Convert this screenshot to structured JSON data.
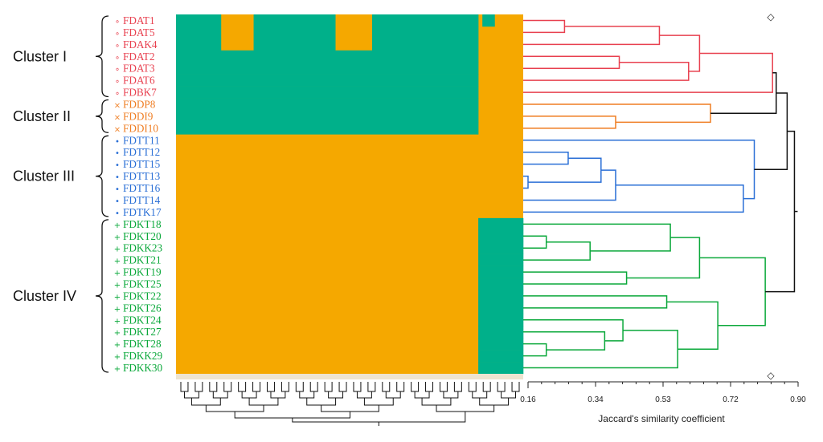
{
  "chart_data": {
    "type": "heatmap",
    "title": "",
    "xlabel": "Jaccard's similarity coefficient",
    "ylabel": "",
    "xlim": [
      0.16,
      0.9
    ],
    "xticks": [
      "0.16",
      "0.34",
      "0.53",
      "0.72",
      "0.90"
    ],
    "grid": false,
    "legend": "none",
    "heatmap_colors": {
      "present": "#00b08a",
      "absent": "#f5a800"
    },
    "marker_symbol": "◇",
    "clusters": [
      {
        "name": "Cluster I",
        "color": "#e8404f",
        "marker": "∘",
        "members": [
          "FDAT1",
          "FDAT5",
          "FDAK4",
          "FDAT2",
          "FDAT3",
          "FDAT6",
          "FDBK7"
        ]
      },
      {
        "name": "Cluster II",
        "color": "#ef7d22",
        "marker": "×",
        "members": [
          "FDDP8",
          "FDDI9",
          "FDDI10"
        ]
      },
      {
        "name": "Cluster III",
        "color": "#2a6fd6",
        "marker": "•",
        "members": [
          "FDTT11",
          "FDTT12",
          "FDTT15",
          "FDTT13",
          "FDTT16",
          "FDTT14",
          "FDTK17"
        ]
      },
      {
        "name": "Cluster IV",
        "color": "#0aa83a",
        "marker": "+",
        "members": [
          "FDKT18",
          "FDKT20",
          "FDKK23",
          "FDKT21",
          "FDKT19",
          "FDKT25",
          "FDKT22",
          "FDKT26",
          "FDKT24",
          "FDKT27",
          "FDKT28",
          "FDKK29",
          "FDKK30"
        ]
      }
    ],
    "dendrogram_merges": [
      {
        "a": 0,
        "b": 1,
        "height": 0.26
      },
      {
        "a": 3,
        "b": 4,
        "height": 0.41
      },
      {
        "a": "0-1",
        "b": 2,
        "height": 0.52
      },
      {
        "a": "3-4",
        "b": 5,
        "height": 0.6
      },
      {
        "a": "0-2",
        "b": "3-5",
        "height": 0.63
      },
      {
        "a": "0-5",
        "b": 6,
        "height": 0.83
      },
      {
        "a": 8,
        "b": 9,
        "height": 0.4
      },
      {
        "a": 7,
        "b": "8-9",
        "height": 0.66
      },
      {
        "a": 13,
        "b": 14,
        "height": 0.16
      },
      {
        "a": 11,
        "b": 12,
        "height": 0.27
      },
      {
        "a": "11-12",
        "b": "13-14",
        "height": 0.36
      },
      {
        "a": "11-14",
        "b": 15,
        "height": 0.4
      },
      {
        "a": "11-15",
        "b": 16,
        "height": 0.75
      },
      {
        "a": 10,
        "b": "11-16",
        "height": 0.78
      },
      {
        "a": 18,
        "b": 19,
        "height": 0.21
      },
      {
        "a": "18-19",
        "b": 20,
        "height": 0.33
      },
      {
        "a": 21,
        "b": 22,
        "height": 0.43
      },
      {
        "a": 17,
        "b": "18-20",
        "height": 0.55
      },
      {
        "a": 23,
        "b": 24,
        "height": 0.54
      },
      {
        "a": 27,
        "b": 28,
        "height": 0.21
      },
      {
        "a": 26,
        "b": "27-28",
        "height": 0.37
      },
      {
        "a": 25,
        "b": "26-28",
        "height": 0.42
      },
      {
        "a": "25-28",
        "b": 29,
        "height": 0.57
      },
      {
        "a": "17-20",
        "b": "21-22",
        "height": 0.63
      },
      {
        "a": "23-24",
        "b": "25-29",
        "height": 0.68
      },
      {
        "a": "17-22",
        "b": "23-29",
        "height": 0.81
      },
      {
        "a": "0-6",
        "b": "7-9",
        "height": 0.84
      },
      {
        "a": "0-9",
        "b": "10-16",
        "height": 0.87
      },
      {
        "a": "0-16",
        "b": "17-29",
        "height": 0.89
      }
    ],
    "matrix": [
      "1111111111100000000111111111111111111110000000001111111111111111111111111101110000000",
      "1111111111100000000111111111111111111110000000001111111111111111111111111100000000000",
      "1111111111100000000111111111111111111110000000001111111111111111111111111100000000000",
      "1111111111111111111111111111111111111111111111111111111111111111111111111100000000000",
      "1111111111111111111111111111111111111111111111111111111111111111111111111100000000000",
      "1111111111111111111111111111111111111111111111111111111111111111111111111100000000000",
      "1111111111111111111111111111111111111111111111111111111111111111111111111100000000000",
      "1111111111111111111111111111111111111111111111111111111111111111111111111100000000000",
      "1111111111111111111111111111111111111111111111111111111111111111111111111100000000000",
      "1111111111111111111111111111111111111111111111111111111111111111111111111100000000000",
      "0000000000000000000000000000000000000000000000000000000000000000000000000000000000000",
      "0000000000000000000000000000000000000000000000000000000000000000000000000000000000000",
      "0000000000000000000000000000000000000000000000000000000000000000000000000000000000000",
      "0000000000000000000000000000000000000000000000000000000000000000000000000000000000000",
      "0000000000000000000000000000000000000000000000000000000000000000000000000000000000000",
      "0000000000000000000000000000000000000000000000000000000000000000000000000000000000000",
      "0000000000000000000000000000000000000000000000000000000000000000000000000000000000000",
      "0000000000000000000000000000000000000000000000000000000000000000000000000011111111111",
      "0000000000000000000000000000000000000000000000000000000000000000000000000011111111111",
      "0000000000000000000000000000000000000000000000000000000000000000000000000011111111111",
      "0000000000000000000000000000000000000000000000000000000000000000000000000011111111111",
      "0000000000000000000000000000000000000000000000000000000000000000000000000011111111111",
      "0000000000000000000000000000000000000000000000000000000000000000000000000011111111111",
      "0000000000000000000000000000000000000000000000000000000000000000000000000011111111111",
      "0000000000000000000000000000000000000000000000000000000000000000000000000011111111111",
      "0000000000000000000000000000000000000000000000000000000000000000000000000011111111111",
      "0000000000000000000000000000000000000000000000000000000000000000000000000011111111111",
      "0000000000000000000000000000000000000000000000000000000000000000000000000011111111111",
      "0000000000000000000000000000000000000000000000000000000000000000000000000011111111111",
      "0000000000000000000000000000000000000000000000000000000000000000000000000011111111111"
    ]
  }
}
